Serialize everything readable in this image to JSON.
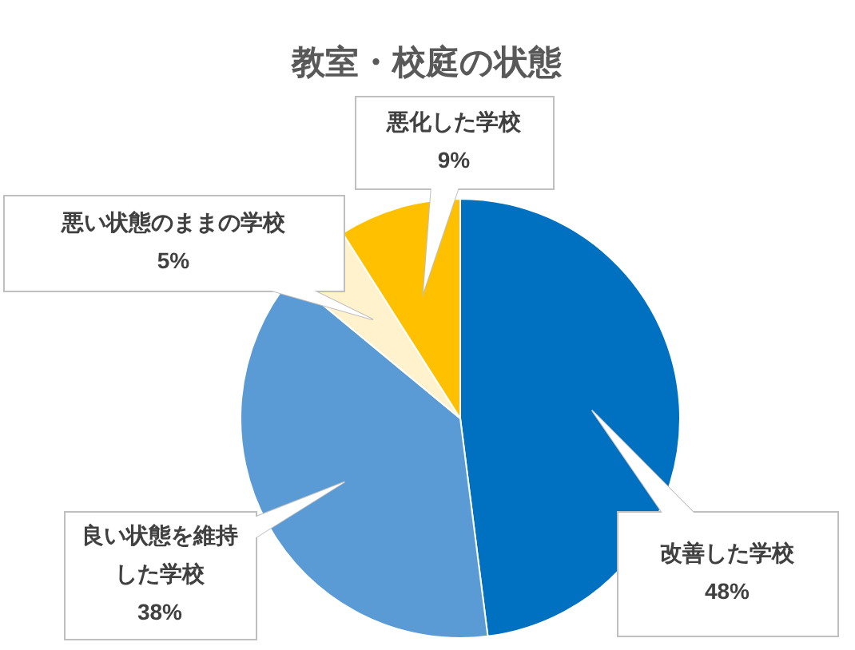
{
  "chart_data": {
    "type": "pie",
    "title": "教室・校庭の状態",
    "categories": [
      "改善した学校",
      "良い状態を維持した学校",
      "悪い状態のままの学校",
      "悪化した学校"
    ],
    "values": [
      48,
      38,
      5,
      9
    ],
    "value_labels": [
      "48%",
      "38%",
      "5%",
      "9%"
    ],
    "colors": [
      "#0070c0",
      "#5b9bd5",
      "#fff2cc",
      "#ffc000"
    ],
    "legend": false
  }
}
